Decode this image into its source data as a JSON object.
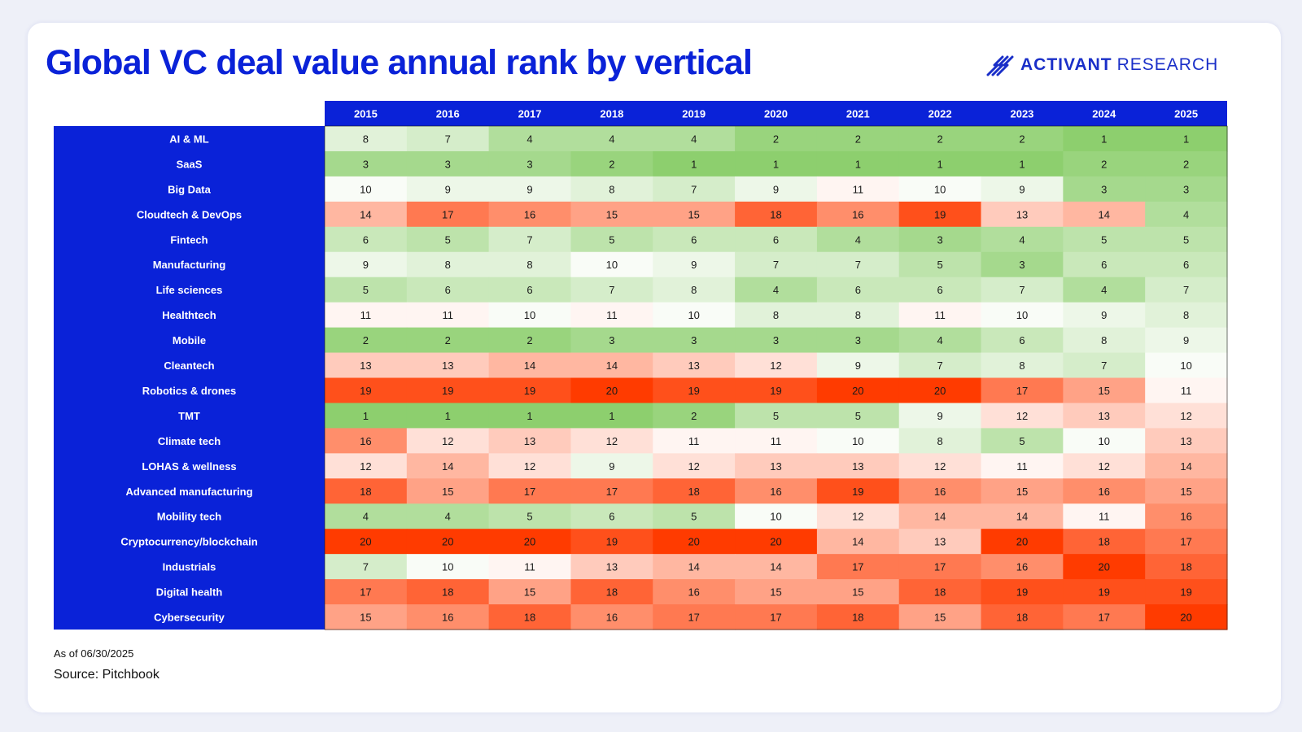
{
  "page": {
    "title": "Global VC deal value annual rank by vertical",
    "brand": {
      "name": "ACTIVANT",
      "sub": "RESEARCH",
      "logo_icon": "activant-chevrons-icon"
    },
    "note": "As of 06/30/2025",
    "source": "Source: Pitchbook",
    "colors": {
      "header_blue": "#0a22d8",
      "title_blue": "#0a22d8",
      "best_rank_green": "#8dcf6e",
      "neutral": "#ffffff",
      "worst_rank_red": "#ff3b00"
    }
  },
  "chart_data": {
    "type": "heatmap",
    "title": "Global VC deal value annual rank by vertical",
    "x": [
      "2015",
      "2016",
      "2017",
      "2018",
      "2019",
      "2020",
      "2021",
      "2022",
      "2023",
      "2024",
      "2025"
    ],
    "y": [
      "AI & ML",
      "SaaS",
      "Big Data",
      "Cloudtech & DevOps",
      "Fintech",
      "Manufacturing",
      "Life sciences",
      "Healthtech",
      "Mobile",
      "Cleantech",
      "Robotics & drones",
      "TMT",
      "Climate tech",
      "LOHAS & wellness",
      "Advanced manufacturing",
      "Mobility tech",
      "Cryptocurrency/blockchain",
      "Industrials",
      "Digital health",
      "Cybersecurity"
    ],
    "values": [
      [
        8,
        7,
        4,
        4,
        4,
        2,
        2,
        2,
        2,
        1,
        1
      ],
      [
        3,
        3,
        3,
        2,
        1,
        1,
        1,
        1,
        1,
        2,
        2
      ],
      [
        10,
        9,
        9,
        8,
        7,
        9,
        11,
        10,
        9,
        3,
        3
      ],
      [
        14,
        17,
        16,
        15,
        15,
        18,
        16,
        19,
        13,
        14,
        4
      ],
      [
        6,
        5,
        7,
        5,
        6,
        6,
        4,
        3,
        4,
        5,
        5
      ],
      [
        9,
        8,
        8,
        10,
        9,
        7,
        7,
        5,
        3,
        6,
        6
      ],
      [
        5,
        6,
        6,
        7,
        8,
        4,
        6,
        6,
        7,
        4,
        7
      ],
      [
        11,
        11,
        10,
        11,
        10,
        8,
        8,
        11,
        10,
        9,
        8
      ],
      [
        2,
        2,
        2,
        3,
        3,
        3,
        3,
        4,
        6,
        8,
        9
      ],
      [
        13,
        13,
        14,
        14,
        13,
        12,
        9,
        7,
        8,
        7,
        10
      ],
      [
        19,
        19,
        19,
        20,
        19,
        19,
        20,
        20,
        17,
        15,
        11
      ],
      [
        1,
        1,
        1,
        1,
        2,
        5,
        5,
        9,
        12,
        13,
        12
      ],
      [
        16,
        12,
        13,
        12,
        11,
        11,
        10,
        8,
        5,
        10,
        13
      ],
      [
        12,
        14,
        12,
        9,
        12,
        13,
        13,
        12,
        11,
        12,
        14
      ],
      [
        18,
        15,
        17,
        17,
        18,
        16,
        19,
        16,
        15,
        16,
        15
      ],
      [
        4,
        4,
        5,
        6,
        5,
        10,
        12,
        14,
        14,
        11,
        16
      ],
      [
        20,
        20,
        20,
        19,
        20,
        20,
        14,
        13,
        20,
        18,
        17
      ],
      [
        7,
        10,
        11,
        13,
        14,
        14,
        17,
        17,
        16,
        20,
        18
      ],
      [
        17,
        18,
        15,
        18,
        16,
        15,
        15,
        18,
        19,
        19,
        19
      ],
      [
        15,
        16,
        18,
        16,
        17,
        17,
        18,
        15,
        18,
        17,
        20
      ]
    ],
    "value_range": [
      1,
      20
    ],
    "color_scale": {
      "low": "#8dcf6e",
      "mid": "#ffffff",
      "high": "#ff3b00"
    }
  }
}
